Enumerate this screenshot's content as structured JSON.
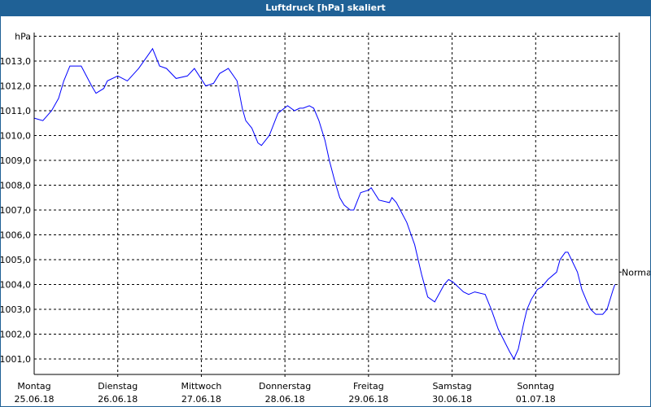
{
  "window": {
    "title": "Luftdruck [hPa] skaliert"
  },
  "chart_data": {
    "type": "line",
    "title": "Luftdruck [hPa] skaliert",
    "ylabel": "hPa",
    "xlabel": "",
    "ylim": [
      1000.4,
      1014.1
    ],
    "xlim": [
      "25.06.18 00:00",
      "02.07.18 00:00"
    ],
    "grid": true,
    "line_color": "#0000ff",
    "y_ticks": [
      "1013,0",
      "1012,0",
      "1011,0",
      "1010,0",
      "1009,0",
      "1008,0",
      "1007,0",
      "1006,0",
      "1005,0",
      "1004,0",
      "1003,0",
      "1002,0",
      "1001,0"
    ],
    "y_tick_values": [
      1013,
      1012,
      1011,
      1010,
      1009,
      1008,
      1007,
      1006,
      1005,
      1004,
      1003,
      1002,
      1001
    ],
    "x_ticks": [
      {
        "day": "Montag",
        "date": "25.06.18"
      },
      {
        "day": "Dienstag",
        "date": "26.06.18"
      },
      {
        "day": "Mittwoch",
        "date": "27.06.18"
      },
      {
        "day": "Donnerstag",
        "date": "28.06.18"
      },
      {
        "day": "Freitag",
        "date": "29.06.18"
      },
      {
        "day": "Samstag",
        "date": "30.06.18"
      },
      {
        "day": "Sonntag",
        "date": "01.07.18"
      }
    ],
    "reference": {
      "label": "Normal",
      "value": 1004.5
    },
    "points": [
      [
        "25.06.18 00:00",
        1010.7
      ],
      [
        "25.06.18 02:30",
        1010.6
      ],
      [
        "25.06.18 05:00",
        1011.0
      ],
      [
        "25.06.18 07:00",
        1011.5
      ],
      [
        "25.06.18 08:30",
        1012.2
      ],
      [
        "25.06.18 10:15",
        1012.8
      ],
      [
        "25.06.18 13:30",
        1012.8
      ],
      [
        "25.06.18 16:30",
        1012.0
      ],
      [
        "25.06.18 17:45",
        1011.7
      ],
      [
        "25.06.18 20:00",
        1011.9
      ],
      [
        "25.06.18 21:00",
        1012.2
      ],
      [
        "26.06.18 00:00",
        1012.4
      ],
      [
        "26.06.18 02:45",
        1012.2
      ],
      [
        "26.06.18 06:00",
        1012.7
      ],
      [
        "26.06.18 08:30",
        1013.2
      ],
      [
        "26.06.18 10:00",
        1013.5
      ],
      [
        "26.06.18 12:00",
        1012.8
      ],
      [
        "26.06.18 14:00",
        1012.7
      ],
      [
        "26.06.18 16:45",
        1012.3
      ],
      [
        "26.06.18 20:00",
        1012.4
      ],
      [
        "26.06.18 22:00",
        1012.7
      ],
      [
        "27.06.18 01:15",
        1012.0
      ],
      [
        "27.06.18 03:30",
        1012.1
      ],
      [
        "27.06.18 05:15",
        1012.5
      ],
      [
        "27.06.18 07:45",
        1012.7
      ],
      [
        "27.06.18 10:15",
        1012.2
      ],
      [
        "27.06.18 11:45",
        1011.1
      ],
      [
        "27.06.18 12:45",
        1010.6
      ],
      [
        "27.06.18 14:30",
        1010.3
      ],
      [
        "27.06.18 16:15",
        1009.7
      ],
      [
        "27.06.18 17:15",
        1009.6
      ],
      [
        "27.06.18 19:30",
        1010.0
      ],
      [
        "27.06.18 22:00",
        1010.9
      ],
      [
        "28.06.18 00:45",
        1011.2
      ],
      [
        "28.06.18 02:45",
        1011.0
      ],
      [
        "28.06.18 04:15",
        1011.1
      ],
      [
        "28.06.18 05:15",
        1011.1
      ],
      [
        "28.06.18 07:00",
        1011.2
      ],
      [
        "28.06.18 08:15",
        1011.1
      ],
      [
        "28.06.18 09:45",
        1010.6
      ],
      [
        "28.06.18 11:30",
        1009.8
      ],
      [
        "28.06.18 12:45",
        1009.0
      ],
      [
        "28.06.18 14:15",
        1008.2
      ],
      [
        "28.06.18 15:45",
        1007.5
      ],
      [
        "28.06.18 17:00",
        1007.2
      ],
      [
        "28.06.18 18:45",
        1007.0
      ],
      [
        "28.06.18 19:45",
        1007.0
      ],
      [
        "28.06.18 21:45",
        1007.7
      ],
      [
        "29.06.18 00:00",
        1007.8
      ],
      [
        "29.06.18 00:45",
        1007.9
      ],
      [
        "29.06.18 03:00",
        1007.4
      ],
      [
        "29.06.18 06:00",
        1007.3
      ],
      [
        "29.06.18 06:45",
        1007.5
      ],
      [
        "29.06.18 08:00",
        1007.3
      ],
      [
        "29.06.18 11:00",
        1006.5
      ],
      [
        "29.06.18 13:15",
        1005.6
      ],
      [
        "29.06.18 15:15",
        1004.4
      ],
      [
        "29.06.18 17:00",
        1003.5
      ],
      [
        "29.06.18 19:00",
        1003.3
      ],
      [
        "29.06.18 21:45",
        1004.0
      ],
      [
        "29.06.18 23:00",
        1004.2
      ],
      [
        "30.06.18 00:15",
        1004.1
      ],
      [
        "30.06.18 03:15",
        1003.7
      ],
      [
        "30.06.18 04:45",
        1003.6
      ],
      [
        "30.06.18 06:30",
        1003.7
      ],
      [
        "30.06.18 09:30",
        1003.6
      ],
      [
        "30.06.18 11:15",
        1003.0
      ],
      [
        "30.06.18 13:15",
        1002.2
      ],
      [
        "30.06.18 16:30",
        1001.3
      ],
      [
        "30.06.18 17:45",
        1001.0
      ],
      [
        "30.06.18 19:00",
        1001.4
      ],
      [
        "30.06.18 20:30",
        1002.4
      ],
      [
        "30.06.18 21:30",
        1003.0
      ],
      [
        "30.06.18 22:45",
        1003.4
      ],
      [
        "01.07.18 00:30",
        1003.8
      ],
      [
        "01.07.18 01:45",
        1003.9
      ],
      [
        "01.07.18 03:30",
        1004.2
      ],
      [
        "01.07.18 06:00",
        1004.5
      ],
      [
        "01.07.18 07:00",
        1005.0
      ],
      [
        "01.07.18 08:30",
        1005.3
      ],
      [
        "01.07.18 09:15",
        1005.3
      ],
      [
        "01.07.18 12:00",
        1004.5
      ],
      [
        "01.07.18 13:15",
        1003.8
      ],
      [
        "01.07.18 14:45",
        1003.3
      ],
      [
        "01.07.18 15:45",
        1003.0
      ],
      [
        "01.07.18 17:15",
        1002.8
      ],
      [
        "01.07.18 19:15",
        1002.8
      ],
      [
        "01.07.18 20:30",
        1003.0
      ],
      [
        "01.07.18 22:15",
        1003.8
      ],
      [
        "01.07.18 22:45",
        1004.0
      ]
    ]
  }
}
